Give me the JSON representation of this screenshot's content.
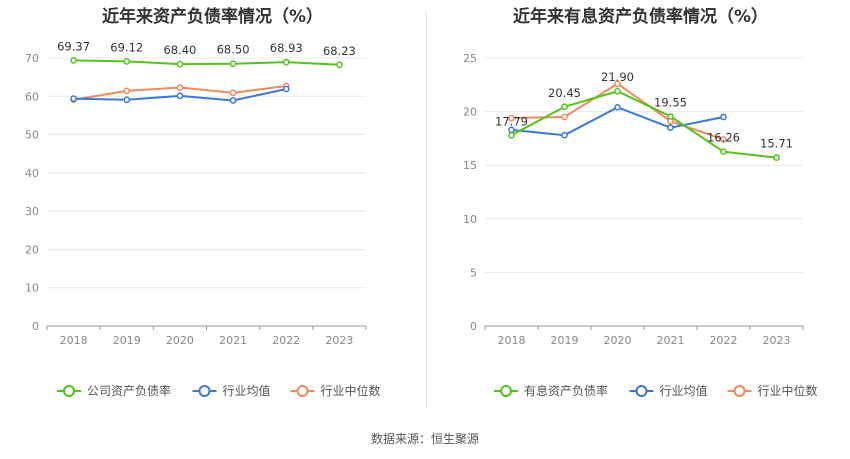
{
  "source_text": "数据来源：恒生聚源",
  "colors": {
    "company": "#52c41a",
    "avg": "#3a78d8",
    "median": "#f08a5d"
  },
  "chart_data": [
    {
      "type": "line",
      "title": "近年来资产负债率情况（%）",
      "x": [
        "2018",
        "2019",
        "2020",
        "2021",
        "2022",
        "2023"
      ],
      "ylim": [
        0,
        70
      ],
      "yticks": [
        0,
        10,
        20,
        30,
        40,
        50,
        60,
        70
      ],
      "grid": true,
      "legend_position": "bottom",
      "series": [
        {
          "name": "公司资产负债率",
          "color": "#52c41a",
          "labeled": true,
          "values": [
            69.37,
            69.12,
            68.4,
            68.5,
            68.93,
            68.23
          ],
          "labels": [
            "69.37",
            "69.12",
            "68.40",
            "68.50",
            "68.93",
            "68.23"
          ]
        },
        {
          "name": "行业均值",
          "color": "#3a78d8",
          "labeled": false,
          "values": [
            59.4,
            59.1,
            60.1,
            58.9,
            61.9,
            null
          ]
        },
        {
          "name": "行业中位数",
          "color": "#f08a5d",
          "labeled": false,
          "values": [
            59.1,
            61.4,
            62.3,
            60.9,
            62.7,
            null
          ]
        }
      ]
    },
    {
      "type": "line",
      "title": "近年来有息资产负债率情况（%）",
      "x": [
        "2018",
        "2019",
        "2020",
        "2021",
        "2022",
        "2023"
      ],
      "ylim": [
        0,
        25
      ],
      "yticks": [
        0,
        5,
        10,
        15,
        20,
        25
      ],
      "grid": true,
      "legend_position": "bottom",
      "series": [
        {
          "name": "有息资产负债率",
          "color": "#52c41a",
          "labeled": true,
          "values": [
            17.79,
            20.45,
            21.9,
            19.55,
            16.26,
            15.71
          ],
          "labels": [
            "17.79",
            "20.45",
            "21.90",
            "19.55",
            "16.26",
            "15.71"
          ]
        },
        {
          "name": "行业均值",
          "color": "#3a78d8",
          "labeled": false,
          "values": [
            18.3,
            17.8,
            20.4,
            18.5,
            19.5,
            null
          ]
        },
        {
          "name": "行业中位数",
          "color": "#f08a5d",
          "labeled": false,
          "values": [
            19.4,
            19.5,
            22.6,
            19.1,
            17.4,
            null
          ]
        }
      ]
    }
  ]
}
